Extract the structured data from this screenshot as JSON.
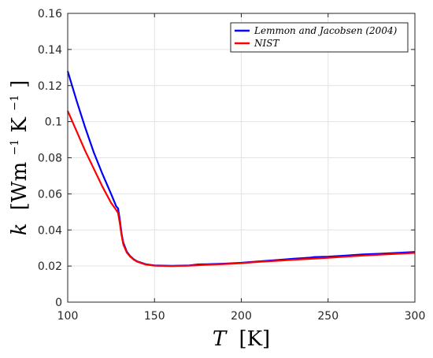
{
  "chart_data": {
    "type": "line",
    "x_label_main": "T",
    "x_label_unit": "[K]",
    "y_label_main": "k",
    "y_label_unit_parts": [
      "[Wm",
      "−1",
      "K",
      "−1",
      "]"
    ],
    "xlim": [
      100,
      300
    ],
    "ylim": [
      0,
      0.16
    ],
    "x_ticks": [
      100,
      150,
      200,
      250,
      300
    ],
    "x_tick_labels": [
      "100",
      "150",
      "200",
      "250",
      "300"
    ],
    "y_ticks": [
      0,
      0.02,
      0.04,
      0.06,
      0.08,
      0.1,
      0.12,
      0.14,
      0.16
    ],
    "y_tick_labels": [
      "0",
      "0.02",
      "0.04",
      "0.06",
      "0.08",
      "0.1",
      "0.12",
      "0.14",
      "0.16"
    ],
    "grid": true,
    "legend_position": "top-right",
    "series": [
      {
        "name": "Lemmon and Jacobsen (2004)",
        "color": "#0000ff",
        "x": [
          100,
          105,
          110,
          115,
          120,
          125,
          128,
          129,
          130,
          131,
          132,
          134,
          136,
          138,
          140,
          145,
          150,
          160,
          170,
          175,
          180,
          190,
          200,
          210,
          220,
          230,
          240,
          242,
          250,
          260,
          270,
          280,
          290,
          300
        ],
        "y": [
          0.128,
          0.112,
          0.097,
          0.083,
          0.071,
          0.06,
          0.053,
          0.052,
          0.046,
          0.038,
          0.033,
          0.028,
          0.0255,
          0.0238,
          0.0226,
          0.021,
          0.0203,
          0.0201,
          0.0203,
          0.0209,
          0.021,
          0.0213,
          0.0218,
          0.0226,
          0.0233,
          0.024,
          0.0247,
          0.025,
          0.0252,
          0.0258,
          0.0264,
          0.0268,
          0.0273,
          0.0278
        ]
      },
      {
        "name": "NIST",
        "color": "#ff0000",
        "x": [
          100,
          105,
          110,
          115,
          120,
          125,
          128,
          129,
          130,
          131,
          132,
          134,
          136,
          138,
          140,
          145,
          150,
          160,
          170,
          180,
          190,
          200,
          210,
          220,
          230,
          240,
          250,
          260,
          270,
          280,
          290,
          300
        ],
        "y": [
          0.106,
          0.095,
          0.084,
          0.074,
          0.064,
          0.055,
          0.051,
          0.0495,
          0.044,
          0.037,
          0.032,
          0.0275,
          0.0252,
          0.0236,
          0.0224,
          0.0208,
          0.0202,
          0.02,
          0.0202,
          0.0207,
          0.0211,
          0.0216,
          0.0223,
          0.0229,
          0.0235,
          0.024,
          0.0246,
          0.0252,
          0.0258,
          0.0263,
          0.0268,
          0.0273
        ]
      }
    ]
  }
}
